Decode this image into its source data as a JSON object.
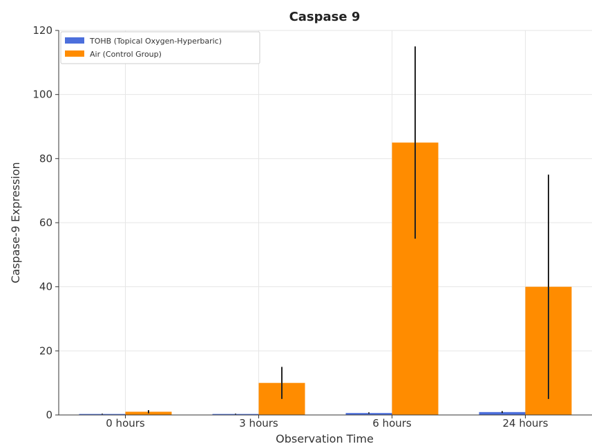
{
  "chart_data": {
    "type": "bar",
    "title": "Caspase 9",
    "xlabel": "Observation Time",
    "ylabel": "Caspase-9 Expression",
    "categories": [
      "0 hours",
      "3 hours",
      "6 hours",
      "24 hours"
    ],
    "ylim": [
      0,
      120
    ],
    "yticks": [
      0,
      20,
      40,
      60,
      80,
      100,
      120
    ],
    "grid": true,
    "legend_position": "top-left",
    "series": [
      {
        "name": "TOHB (Topical Oxygen-Hyperbaric)",
        "color": "#4c6fdc",
        "values": [
          0.3,
          0.3,
          0.6,
          0.9
        ],
        "errors": [
          0.1,
          0.1,
          0.2,
          0.3
        ]
      },
      {
        "name": "Air (Control Group)",
        "color": "#ff8c00",
        "values": [
          1,
          10,
          85,
          40
        ],
        "errors": [
          0.5,
          5,
          30,
          35
        ]
      }
    ]
  }
}
